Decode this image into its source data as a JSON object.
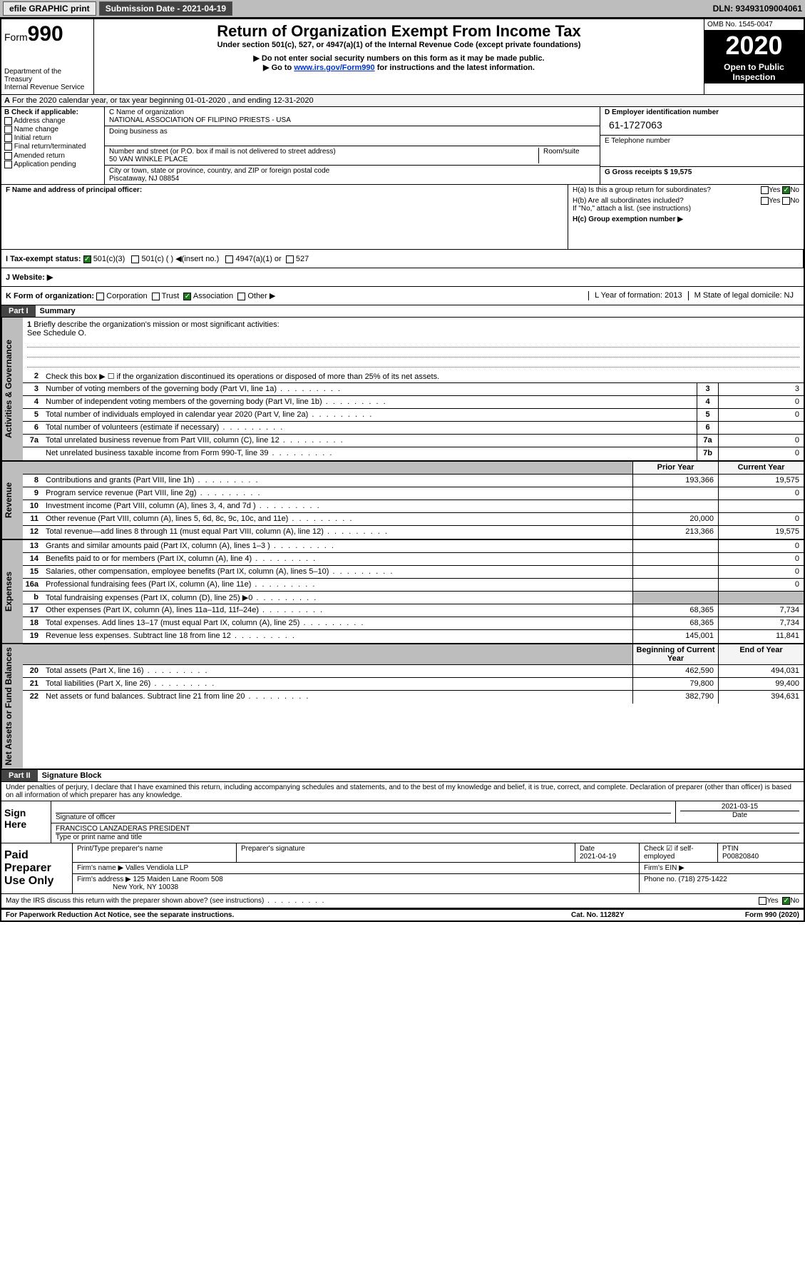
{
  "topbar": {
    "efile": "efile GRAPHIC print",
    "subdate_label": "Submission Date - 2021-04-19",
    "dln": "DLN: 93493109004061"
  },
  "header": {
    "form_label": "Form",
    "form_num": "990",
    "dept1": "Department of the Treasury",
    "dept2": "Internal Revenue Service",
    "title": "Return of Organization Exempt From Income Tax",
    "sub1": "Under section 501(c), 527, or 4947(a)(1) of the Internal Revenue Code (except private foundations)",
    "sub2": "▶ Do not enter social security numbers on this form as it may be made public.",
    "sub3a": "▶ Go to ",
    "sub3b": "www.irs.gov/Form990",
    "sub3c": " for instructions and the latest information.",
    "omb": "OMB No. 1545-0047",
    "year": "2020",
    "open1": "Open to Public",
    "open2": "Inspection"
  },
  "rowA": "For the 2020 calendar year, or tax year beginning 01-01-2020    , and ending 12-31-2020",
  "boxB": {
    "title": "B Check if applicable:",
    "items": [
      "Address change",
      "Name change",
      "Initial return",
      "Final return/terminated",
      "Amended return",
      "Application pending"
    ]
  },
  "boxC": {
    "name_label": "C Name of organization",
    "name": "NATIONAL ASSOCIATION OF FILIPINO PRIESTS - USA",
    "dba_label": "Doing business as",
    "addr_label": "Number and street (or P.O. box if mail is not delivered to street address)",
    "room_label": "Room/suite",
    "addr": "50 VAN WINKLE PLACE",
    "city_label": "City or town, state or province, country, and ZIP or foreign postal code",
    "city": "Piscataway, NJ  08854"
  },
  "boxD": {
    "ein_label": "D Employer identification number",
    "ein": "61-1727063",
    "phone_label": "E Telephone number",
    "gross_label": "G Gross receipts $ 19,575"
  },
  "boxF": {
    "label": "F  Name and address of principal officer:"
  },
  "boxH": {
    "ha": "H(a)  Is this a group return for subordinates?",
    "hb": "H(b)  Are all subordinates included?",
    "hb_note": "If \"No,\" attach a list. (see instructions)",
    "hc": "H(c)  Group exemption number ▶",
    "yes": "Yes",
    "no": "No"
  },
  "rowI": {
    "label": "I    Tax-exempt status:",
    "o1": "501(c)(3)",
    "o2": "501(c) (   ) ◀(insert no.)",
    "o3": "4947(a)(1) or",
    "o4": "527"
  },
  "rowJ": {
    "label": "J    Website: ▶"
  },
  "rowK": {
    "label": "K Form of organization:",
    "o1": "Corporation",
    "o2": "Trust",
    "o3": "Association",
    "o4": "Other ▶",
    "L": "L Year of formation: 2013",
    "M": "M State of legal domicile: NJ"
  },
  "part1": {
    "label": "Part I",
    "title": "Summary"
  },
  "governance": {
    "vlabel": "Activities & Governance",
    "l1": "Briefly describe the organization's mission or most significant activities:",
    "l1v": "See Schedule O.",
    "l2": "Check this box ▶ ☐  if the organization discontinued its operations or disposed of more than 25% of its net assets.",
    "l3": "Number of voting members of the governing body (Part VI, line 1a)",
    "l4": "Number of independent voting members of the governing body (Part VI, line 1b)",
    "l5": "Total number of individuals employed in calendar year 2020 (Part V, line 2a)",
    "l6": "Total number of volunteers (estimate if necessary)",
    "l7a": "Total unrelated business revenue from Part VIII, column (C), line 12",
    "l7b": "Net unrelated business taxable income from Form 990-T, line 39",
    "v3": "3",
    "v4": "0",
    "v5": "0",
    "v6": "",
    "v7a": "0",
    "v7b": "0"
  },
  "revenue": {
    "vlabel": "Revenue",
    "hprior": "Prior Year",
    "hcurr": "Current Year",
    "rows": [
      {
        "n": "8",
        "d": "Contributions and grants (Part VIII, line 1h)",
        "p": "193,366",
        "c": "19,575"
      },
      {
        "n": "9",
        "d": "Program service revenue (Part VIII, line 2g)",
        "p": "",
        "c": "0"
      },
      {
        "n": "10",
        "d": "Investment income (Part VIII, column (A), lines 3, 4, and 7d )",
        "p": "",
        "c": ""
      },
      {
        "n": "11",
        "d": "Other revenue (Part VIII, column (A), lines 5, 6d, 8c, 9c, 10c, and 11e)",
        "p": "20,000",
        "c": "0"
      },
      {
        "n": "12",
        "d": "Total revenue—add lines 8 through 11 (must equal Part VIII, column (A), line 12)",
        "p": "213,366",
        "c": "19,575"
      }
    ]
  },
  "expenses": {
    "vlabel": "Expenses",
    "rows": [
      {
        "n": "13",
        "d": "Grants and similar amounts paid (Part IX, column (A), lines 1–3 )",
        "p": "",
        "c": "0"
      },
      {
        "n": "14",
        "d": "Benefits paid to or for members (Part IX, column (A), line 4)",
        "p": "",
        "c": "0"
      },
      {
        "n": "15",
        "d": "Salaries, other compensation, employee benefits (Part IX, column (A), lines 5–10)",
        "p": "",
        "c": "0"
      },
      {
        "n": "16a",
        "d": "Professional fundraising fees (Part IX, column (A), line 11e)",
        "p": "",
        "c": "0"
      },
      {
        "n": "b",
        "d": "Total fundraising expenses (Part IX, column (D), line 25) ▶0",
        "p": "grey",
        "c": "grey"
      },
      {
        "n": "17",
        "d": "Other expenses (Part IX, column (A), lines 11a–11d, 11f–24e)",
        "p": "68,365",
        "c": "7,734"
      },
      {
        "n": "18",
        "d": "Total expenses. Add lines 13–17 (must equal Part IX, column (A), line 25)",
        "p": "68,365",
        "c": "7,734"
      },
      {
        "n": "19",
        "d": "Revenue less expenses. Subtract line 18 from line 12",
        "p": "145,001",
        "c": "11,841"
      }
    ]
  },
  "netassets": {
    "vlabel": "Net Assets or Fund Balances",
    "hprior": "Beginning of Current Year",
    "hcurr": "End of Year",
    "rows": [
      {
        "n": "20",
        "d": "Total assets (Part X, line 16)",
        "p": "462,590",
        "c": "494,031"
      },
      {
        "n": "21",
        "d": "Total liabilities (Part X, line 26)",
        "p": "79,800",
        "c": "99,400"
      },
      {
        "n": "22",
        "d": "Net assets or fund balances. Subtract line 21 from line 20",
        "p": "382,790",
        "c": "394,631"
      }
    ]
  },
  "part2": {
    "label": "Part II",
    "title": "Signature Block",
    "decl": "Under penalties of perjury, I declare that I have examined this return, including accompanying schedules and statements, and to the best of my knowledge and belief, it is true, correct, and complete. Declaration of preparer (other than officer) is based on all information of which preparer has any knowledge."
  },
  "sign": {
    "here": "Sign Here",
    "sig_label": "Signature of officer",
    "date": "2021-03-15",
    "date_label": "Date",
    "name": "FRANCISCO LANZADERAS  PRESIDENT",
    "name_label": "Type or print name and title"
  },
  "paid": {
    "title": "Paid Preparer Use Only",
    "h1": "Print/Type preparer's name",
    "h2": "Preparer's signature",
    "h3": "Date",
    "h4": "Check ☑ if self-employed",
    "h5": "PTIN",
    "v3": "2021-04-19",
    "v5": "P00820840",
    "firm_label": "Firm's name    ▶",
    "firm": "Valles Vendiola LLP",
    "ein_label": "Firm's EIN ▶",
    "addr_label": "Firm's address ▶",
    "addr1": "125 Maiden Lane Room 508",
    "addr2": "New York, NY  10038",
    "phone_label": "Phone no. (718) 275-1422"
  },
  "footer": {
    "discuss": "May the IRS discuss this return with the preparer shown above? (see instructions)",
    "yes": "Yes",
    "no": "No",
    "notice": "For Paperwork Reduction Act Notice, see the separate instructions.",
    "cat": "Cat. No. 11282Y",
    "form": "Form 990 (2020)"
  }
}
